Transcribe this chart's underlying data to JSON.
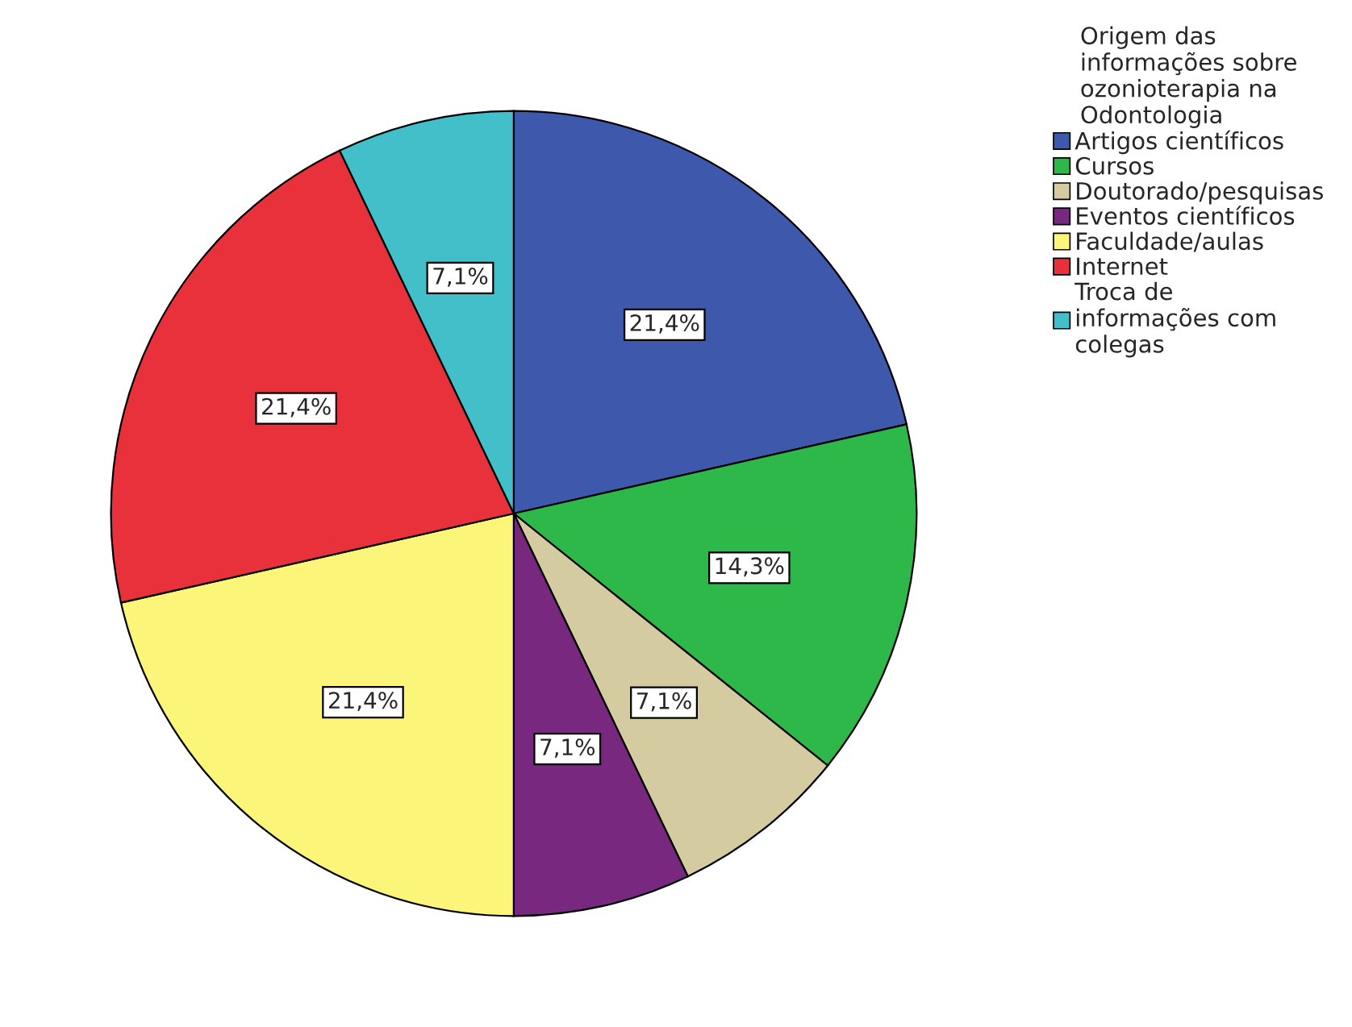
{
  "chart_data": {
    "type": "pie",
    "legend_title": "Origem das\ninformações sobre\nozonioterapia na\nOdontologia",
    "categories": [
      "Artigos científicos",
      "Cursos",
      "Doutorado/pesquisas",
      "Eventos científicos",
      "Faculdade/aulas",
      "Internet",
      "Troca de\ninformações com\ncolegas"
    ],
    "values": [
      21.4,
      14.3,
      7.1,
      7.1,
      21.4,
      21.4,
      7.1
    ],
    "value_labels": [
      "21,4%",
      "14,3%",
      "7,1%",
      "7,1%",
      "21,4%",
      "21,4%",
      "7,1%"
    ],
    "colors": [
      "#3e58ac",
      "#2eb84a",
      "#d4cba0",
      "#78287e",
      "#fbf57a",
      "#e8313a",
      "#43bfc9"
    ],
    "legend": "top right"
  }
}
